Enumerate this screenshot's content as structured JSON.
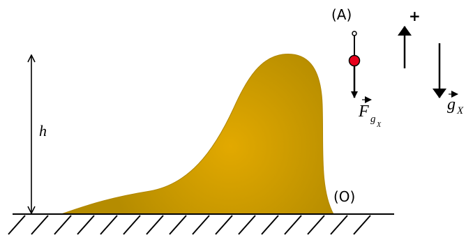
{
  "labels": {
    "point_a": "(A)",
    "plus": "+",
    "height": "h",
    "point_o": "(O)",
    "force": {
      "base": "F",
      "sub": "g",
      "subsub": "X"
    },
    "gravity": {
      "base": "g",
      "sub": "X"
    }
  }
}
